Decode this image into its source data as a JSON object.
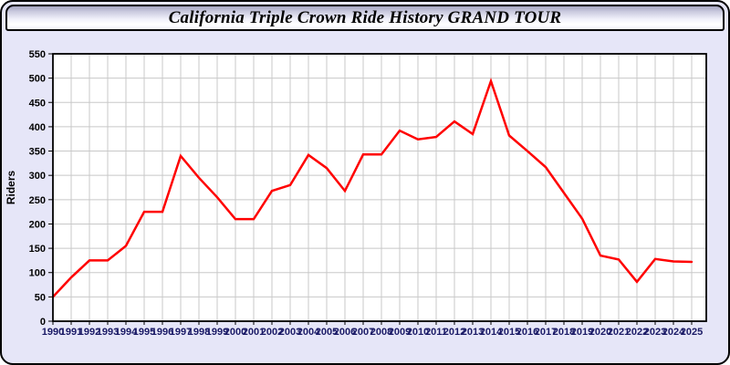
{
  "title": "California Triple Crown Ride History GRAND TOUR",
  "colors": {
    "window_background": "#e6e6f8",
    "plot_background": "#ffffff",
    "grid": "#c8c8c8",
    "frame": "#000000",
    "series_line": "#ff0000",
    "x_tick_label": "#1a1a66",
    "y_tick_label": "#000000"
  },
  "chart_data": {
    "type": "line",
    "title": "California Triple Crown Ride History GRAND TOUR",
    "xlabel": "",
    "ylabel": "Riders",
    "ylim": [
      0,
      550
    ],
    "ytick_interval": 50,
    "grid": true,
    "legend": "none",
    "x": [
      1990,
      1991,
      1992,
      1993,
      1994,
      1995,
      1996,
      1997,
      1998,
      1999,
      2000,
      2001,
      2002,
      2003,
      2004,
      2005,
      2006,
      2007,
      2008,
      2009,
      2010,
      2011,
      2012,
      2013,
      2014,
      2015,
      2016,
      2017,
      2018,
      2019,
      2020,
      2021,
      2022,
      2023,
      2024,
      2025
    ],
    "series": [
      {
        "name": "Riders",
        "color": "#ff0000",
        "values": [
          50,
          90,
          125,
          125,
          155,
          225,
          225,
          340,
          295,
          255,
          210,
          210,
          268,
          280,
          342,
          315,
          268,
          343,
          343,
          392,
          374,
          379,
          411,
          385,
          494,
          382,
          350,
          317,
          264,
          211,
          135,
          127,
          81,
          128,
          123,
          122
        ]
      }
    ]
  }
}
